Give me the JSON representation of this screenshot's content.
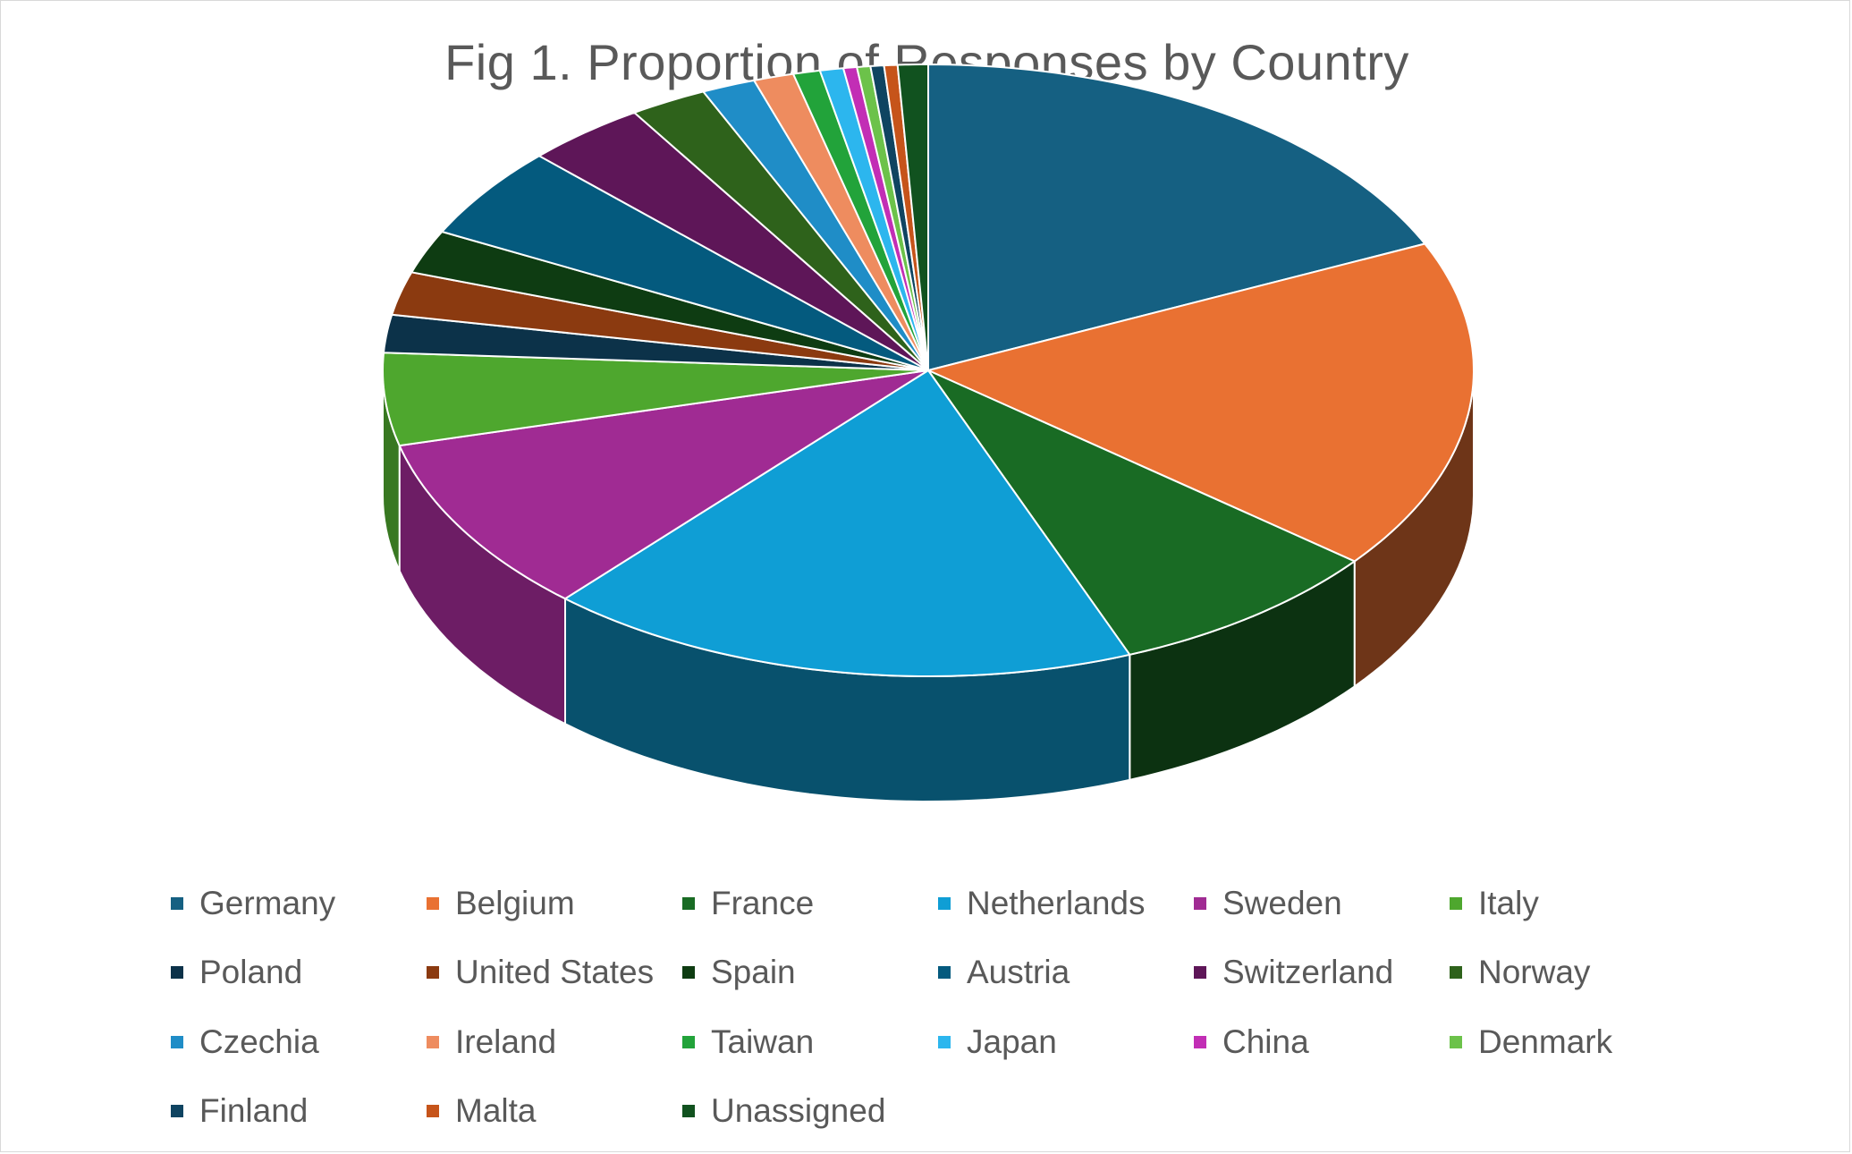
{
  "chart_data": {
    "type": "pie",
    "style": "3d-exploded-none",
    "title": "Fig 1. Proportion of Responses by Country",
    "legend_position": "bottom",
    "unit": "proportion",
    "slices": [
      {
        "label": "Germany",
        "value": 18.3,
        "color": "#156082"
      },
      {
        "label": "Belgium",
        "value": 17.6,
        "color": "#E97132"
      },
      {
        "label": "France",
        "value": 8.3,
        "color": "#196B24"
      },
      {
        "label": "Netherlands",
        "value": 17.7,
        "color": "#0F9ED5"
      },
      {
        "label": "Sweden",
        "value": 9.5,
        "color": "#A02B93"
      },
      {
        "label": "Italy",
        "value": 4.9,
        "color": "#4EA72E"
      },
      {
        "label": "Poland",
        "value": 2.0,
        "color": "#0C3249"
      },
      {
        "label": "United States",
        "value": 2.3,
        "color": "#8B3A10"
      },
      {
        "label": "Spain",
        "value": 2.3,
        "color": "#0E3C12"
      },
      {
        "label": "Austria",
        "value": 4.9,
        "color": "#045A7E"
      },
      {
        "label": "Switzerland",
        "value": 3.6,
        "color": "#5E1658"
      },
      {
        "label": "Norway",
        "value": 2.3,
        "color": "#2E621B"
      },
      {
        "label": "Czechia",
        "value": 1.6,
        "color": "#1F8DC7"
      },
      {
        "label": "Ireland",
        "value": 1.2,
        "color": "#EE8C5F"
      },
      {
        "label": "Taiwan",
        "value": 0.8,
        "color": "#22A33A"
      },
      {
        "label": "Japan",
        "value": 0.7,
        "color": "#2CB6EE"
      },
      {
        "label": "China",
        "value": 0.4,
        "color": "#C22EB5"
      },
      {
        "label": "Denmark",
        "value": 0.4,
        "color": "#6CC24A"
      },
      {
        "label": "Finland",
        "value": 0.4,
        "color": "#0F4461"
      },
      {
        "label": "Malta",
        "value": 0.4,
        "color": "#C6541A"
      },
      {
        "label": "Unassigned",
        "value": 0.9,
        "color": "#11521F"
      }
    ]
  }
}
